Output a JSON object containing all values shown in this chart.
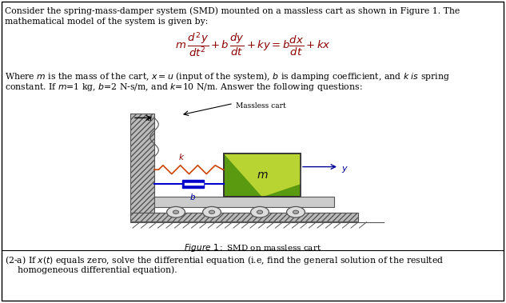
{
  "background_color": "#ffffff",
  "border_color": "#000000",
  "fig_width": 6.33,
  "fig_height": 3.79,
  "text_color": "#000000",
  "eq_color": "#8B0000",
  "wall_hatch_color": "#888888",
  "spring_color": "#cc4400",
  "damper_color": "#0000cc",
  "mass_color": "#7ab520",
  "mass_highlight": "#e8e800",
  "label_k_color": "#8B0000",
  "label_b_color": "#000099",
  "label_m_color": "#000066",
  "label_u_color": "#000000",
  "label_y_color": "#000099",
  "arrow_color": "#000000",
  "wheel_color": "#cccccc",
  "cart_color": "#cccccc",
  "floor_color": "#aaaaaa",
  "ground_hatch_color": "#555555",
  "line1": "Consider the spring-mass-damper system (SMD) mounted on a massless cart as shown in Figure 1. The",
  "line2": "mathematical model of the system is given by:",
  "body1": "Where $m$ is the mass of the cart, $x = u$ (input of the system), $b$ is damping coefficient, and $k$ $is$ spring",
  "body2": "constant. If $m$=1 kg, $b$=2 N-s/m, and $k$=10 N/m. Answer the following questions:",
  "fig_caption_italic": "Figure 1:",
  "fig_caption_normal": " SMD on massless cart",
  "q_line1": "(2-a) If $x(t)$ equals zero, solve the differential equation (i.e, find the general solution of the resulted",
  "q_line2": "homogeneous differential equation).",
  "massless_cart_label": "Massless cart"
}
